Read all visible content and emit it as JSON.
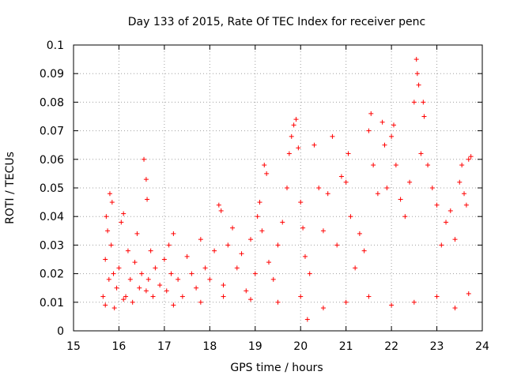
{
  "chart_data": {
    "type": "scatter",
    "title": "Day 133 of 2015, Rate Of TEC Index for receiver penc",
    "xlabel": "GPS time / hours",
    "ylabel": "ROTI / TECUs",
    "xlim": [
      15,
      24
    ],
    "ylim": [
      0,
      0.1
    ],
    "x_ticks": [
      "15",
      "16",
      "17",
      "18",
      "19",
      "20",
      "21",
      "22",
      "23",
      "24"
    ],
    "y_ticks": [
      "0",
      "0.01",
      "0.02",
      "0.03",
      "0.04",
      "0.05",
      "0.06",
      "0.07",
      "0.08",
      "0.09",
      "0.1"
    ],
    "grid": true,
    "marker": "+",
    "color": "#ff0000",
    "series": [
      {
        "points": [
          [
            15.65,
            0.012
          ],
          [
            15.7,
            0.025
          ],
          [
            15.72,
            0.04
          ],
          [
            15.75,
            0.035
          ],
          [
            15.78,
            0.018
          ],
          [
            15.8,
            0.048
          ],
          [
            15.83,
            0.03
          ],
          [
            15.85,
            0.045
          ],
          [
            15.88,
            0.02
          ],
          [
            15.9,
            0.008
          ],
          [
            15.95,
            0.015
          ],
          [
            16.0,
            0.022
          ],
          [
            16.05,
            0.038
          ],
          [
            16.1,
            0.041
          ],
          [
            16.15,
            0.012
          ],
          [
            16.2,
            0.028
          ],
          [
            16.25,
            0.018
          ],
          [
            16.3,
            0.01
          ],
          [
            16.35,
            0.024
          ],
          [
            16.4,
            0.034
          ],
          [
            16.45,
            0.015
          ],
          [
            16.5,
            0.02
          ],
          [
            16.55,
            0.06
          ],
          [
            16.6,
            0.053
          ],
          [
            16.62,
            0.046
          ],
          [
            16.65,
            0.018
          ],
          [
            16.7,
            0.028
          ],
          [
            16.75,
            0.012
          ],
          [
            16.8,
            0.022
          ],
          [
            16.9,
            0.016
          ],
          [
            17.0,
            0.025
          ],
          [
            17.05,
            0.014
          ],
          [
            17.1,
            0.03
          ],
          [
            17.15,
            0.02
          ],
          [
            17.2,
            0.034
          ],
          [
            17.3,
            0.018
          ],
          [
            17.4,
            0.012
          ],
          [
            17.5,
            0.026
          ],
          [
            17.6,
            0.02
          ],
          [
            17.7,
            0.015
          ],
          [
            17.8,
            0.032
          ],
          [
            17.9,
            0.022
          ],
          [
            18.0,
            0.018
          ],
          [
            18.1,
            0.028
          ],
          [
            18.2,
            0.044
          ],
          [
            18.25,
            0.042
          ],
          [
            18.3,
            0.016
          ],
          [
            18.4,
            0.03
          ],
          [
            18.5,
            0.036
          ],
          [
            18.6,
            0.022
          ],
          [
            18.7,
            0.027
          ],
          [
            18.8,
            0.014
          ],
          [
            18.9,
            0.032
          ],
          [
            19.0,
            0.02
          ],
          [
            19.05,
            0.04
          ],
          [
            19.1,
            0.045
          ],
          [
            19.15,
            0.035
          ],
          [
            19.2,
            0.058
          ],
          [
            19.25,
            0.055
          ],
          [
            19.3,
            0.024
          ],
          [
            19.4,
            0.018
          ],
          [
            19.5,
            0.03
          ],
          [
            19.6,
            0.038
          ],
          [
            19.7,
            0.05
          ],
          [
            19.75,
            0.062
          ],
          [
            19.8,
            0.068
          ],
          [
            19.85,
            0.072
          ],
          [
            19.9,
            0.074
          ],
          [
            19.95,
            0.064
          ],
          [
            20.0,
            0.045
          ],
          [
            20.05,
            0.036
          ],
          [
            20.1,
            0.026
          ],
          [
            20.15,
            0.004
          ],
          [
            20.2,
            0.02
          ],
          [
            20.3,
            0.065
          ],
          [
            20.4,
            0.05
          ],
          [
            20.5,
            0.035
          ],
          [
            20.6,
            0.048
          ],
          [
            20.7,
            0.068
          ],
          [
            20.8,
            0.03
          ],
          [
            20.9,
            0.054
          ],
          [
            21.0,
            0.052
          ],
          [
            21.05,
            0.062
          ],
          [
            21.1,
            0.04
          ],
          [
            21.2,
            0.022
          ],
          [
            21.3,
            0.034
          ],
          [
            21.4,
            0.028
          ],
          [
            21.5,
            0.07
          ],
          [
            21.55,
            0.076
          ],
          [
            21.6,
            0.058
          ],
          [
            21.7,
            0.048
          ],
          [
            21.8,
            0.073
          ],
          [
            21.85,
            0.065
          ],
          [
            21.9,
            0.05
          ],
          [
            22.0,
            0.068
          ],
          [
            22.05,
            0.072
          ],
          [
            22.1,
            0.058
          ],
          [
            22.2,
            0.046
          ],
          [
            22.3,
            0.04
          ],
          [
            22.4,
            0.052
          ],
          [
            22.5,
            0.08
          ],
          [
            22.55,
            0.095
          ],
          [
            22.57,
            0.09
          ],
          [
            22.6,
            0.086
          ],
          [
            22.65,
            0.062
          ],
          [
            22.7,
            0.08
          ],
          [
            22.72,
            0.075
          ],
          [
            22.8,
            0.058
          ],
          [
            22.9,
            0.05
          ],
          [
            23.0,
            0.044
          ],
          [
            23.1,
            0.03
          ],
          [
            23.2,
            0.038
          ],
          [
            23.3,
            0.042
          ],
          [
            23.4,
            0.032
          ],
          [
            23.5,
            0.052
          ],
          [
            23.55,
            0.058
          ],
          [
            23.6,
            0.048
          ],
          [
            23.65,
            0.044
          ],
          [
            23.7,
            0.06
          ],
          [
            23.75,
            0.061
          ],
          [
            15.7,
            0.009
          ],
          [
            16.1,
            0.011
          ],
          [
            16.6,
            0.014
          ],
          [
            17.2,
            0.009
          ],
          [
            17.8,
            0.01
          ],
          [
            18.3,
            0.012
          ],
          [
            18.9,
            0.011
          ],
          [
            19.5,
            0.01
          ],
          [
            20.0,
            0.012
          ],
          [
            20.5,
            0.008
          ],
          [
            21.0,
            0.01
          ],
          [
            21.5,
            0.012
          ],
          [
            22.0,
            0.009
          ],
          [
            22.5,
            0.01
          ],
          [
            23.0,
            0.012
          ],
          [
            23.4,
            0.008
          ],
          [
            23.7,
            0.013
          ]
        ]
      }
    ]
  }
}
